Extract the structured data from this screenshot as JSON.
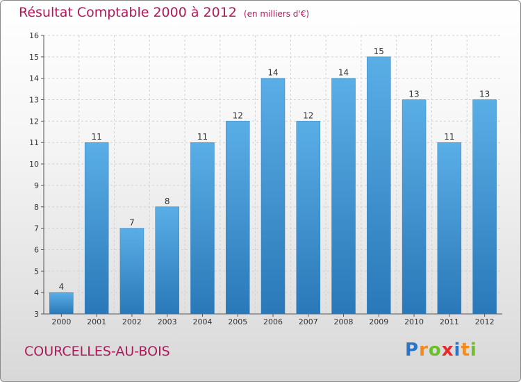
{
  "header": {
    "title": "Résultat Comptable 2000 à 2012",
    "unit": "(en milliers d'€)"
  },
  "footer": {
    "city": "COURCELLES-AU-BOIS",
    "brand": [
      "P",
      "r",
      "o",
      "x",
      "i",
      "t",
      "i"
    ]
  },
  "colors": {
    "title": "#b0185a",
    "bar_top": "#5aaee6",
    "bar_bottom": "#2a78b8",
    "brand": [
      "#2b74c8",
      "#f28a1c",
      "#6cbf2a",
      "#e8282a",
      "#2b74c8",
      "#f28a1c",
      "#6cbf2a"
    ]
  },
  "chart_data": {
    "type": "bar",
    "title": "Résultat Comptable 2000 à 2012",
    "subtitle": "(en milliers d'€)",
    "categories": [
      "2000",
      "2001",
      "2002",
      "2003",
      "2004",
      "2005",
      "2006",
      "2007",
      "2008",
      "2009",
      "2010",
      "2011",
      "2012"
    ],
    "values": [
      4,
      11,
      7,
      8,
      11,
      12,
      14,
      12,
      14,
      15,
      13,
      11,
      13
    ],
    "ylim": [
      3,
      16
    ],
    "yticks": [
      3,
      4,
      5,
      6,
      7,
      8,
      9,
      10,
      11,
      12,
      13,
      14,
      15,
      16
    ],
    "grid": true
  }
}
